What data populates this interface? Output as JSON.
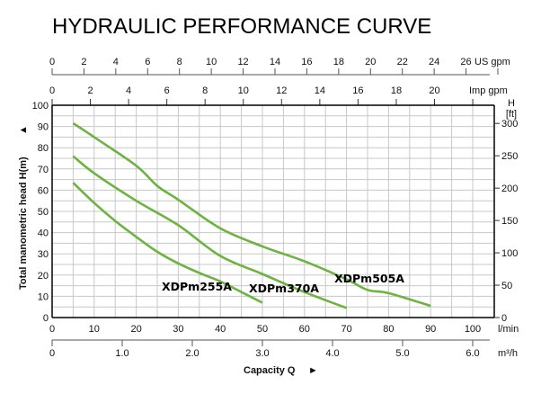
{
  "chart_data": {
    "type": "line",
    "title": "HYDRAULIC PERFORMANCE CURVE",
    "xlabel": "Capacity Q",
    "xlabel_arrow": "►",
    "ylabel": "Total manometric head H(m)",
    "ylabel_arrow": "▲",
    "x_unit": "l/min",
    "xlim": [
      0,
      105
    ],
    "ylim": [
      0,
      100
    ],
    "grid": true,
    "x_ticks": [
      0,
      10,
      20,
      30,
      40,
      50,
      60,
      70,
      80,
      90,
      100
    ],
    "x_minor_step": 5,
    "y_ticks": [
      0,
      10,
      20,
      30,
      40,
      50,
      60,
      70,
      80,
      90,
      100
    ],
    "secondary_axes": {
      "us_gpm": {
        "unit": "US gpm",
        "ticks": [
          0,
          2,
          4,
          6,
          8,
          10,
          12,
          14,
          16,
          18,
          20,
          22,
          24,
          26
        ],
        "lpm_per_unit": 3.785
      },
      "imp_gpm": {
        "unit": "Imp gpm",
        "ticks": [
          0,
          2,
          4,
          6,
          8,
          10,
          12,
          14,
          16,
          18,
          20
        ],
        "lpm_per_unit": 4.546
      },
      "m3h": {
        "unit": "m³/h",
        "ticks": [
          "0",
          "1.0",
          "2.0",
          "3.0",
          "4.0",
          "5.0",
          "6.0"
        ],
        "lpm_per_unit": 16.667
      },
      "head_ft": {
        "unit_line1": "H",
        "unit_line2": "[ft]",
        "ticks": [
          0,
          50,
          100,
          150,
          200,
          250,
          300
        ],
        "m_per_unit": 0.3048
      }
    },
    "series_color": "#6db33f",
    "series": [
      {
        "name": "XDPm255A",
        "x": [
          5,
          10,
          15,
          20,
          25,
          30,
          35,
          40,
          45,
          50
        ],
        "y": [
          63.5,
          54,
          45.5,
          38,
          31,
          25.5,
          21,
          17,
          12,
          7
        ]
      },
      {
        "name": "XDPm370A",
        "x": [
          5,
          10,
          20,
          30,
          40,
          50,
          60,
          70
        ],
        "y": [
          76,
          68,
          55,
          43.5,
          29,
          20.5,
          12,
          4.5
        ]
      },
      {
        "name": "XDPm505A",
        "x": [
          5,
          10,
          20,
          25,
          30,
          40,
          50,
          60,
          70,
          75,
          80,
          90
        ],
        "y": [
          91.5,
          85,
          71.5,
          62,
          55.5,
          42,
          33.5,
          26.5,
          18,
          13,
          11.5,
          5.5
        ]
      }
    ]
  }
}
